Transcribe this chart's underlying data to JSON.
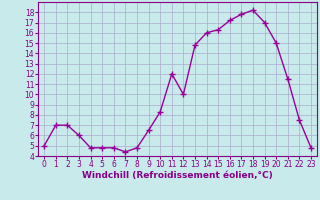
{
  "x": [
    0,
    1,
    2,
    3,
    4,
    5,
    6,
    7,
    8,
    9,
    10,
    11,
    12,
    13,
    14,
    15,
    16,
    17,
    18,
    19,
    20,
    21,
    22,
    23
  ],
  "y": [
    5.0,
    7.0,
    7.0,
    6.0,
    4.8,
    4.8,
    4.8,
    4.4,
    4.8,
    6.5,
    8.3,
    12.0,
    10.0,
    14.8,
    16.0,
    16.3,
    17.2,
    17.8,
    18.2,
    17.0,
    15.0,
    11.5,
    7.5,
    4.8
  ],
  "line_color": "#990099",
  "marker": "+",
  "marker_size": 4,
  "xlabel": "Windchill (Refroidissement éolien,°C)",
  "xlim": [
    -0.5,
    23.5
  ],
  "ylim": [
    4,
    19
  ],
  "yticks": [
    4,
    5,
    6,
    7,
    8,
    9,
    10,
    11,
    12,
    13,
    14,
    15,
    16,
    17,
    18
  ],
  "xticks": [
    0,
    1,
    2,
    3,
    4,
    5,
    6,
    7,
    8,
    9,
    10,
    11,
    12,
    13,
    14,
    15,
    16,
    17,
    18,
    19,
    20,
    21,
    22,
    23
  ],
  "background_color": "#c8eaea",
  "grid_color": "#aaaacc",
  "tick_color": "#880088",
  "label_color": "#880088",
  "xlabel_fontsize": 6.5,
  "tick_fontsize": 5.5
}
